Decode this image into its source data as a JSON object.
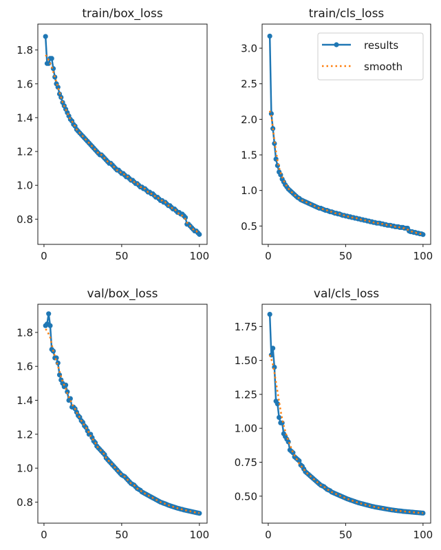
{
  "colors": {
    "results": "#1f77b4",
    "smooth": "#ff7f0e"
  },
  "legend": {
    "placement": "upper-right of train/cls_loss",
    "entries": [
      "results",
      "smooth"
    ]
  },
  "chart_data": [
    {
      "type": "line",
      "title": "train/box_loss",
      "xlim": [
        -3.95,
        104.95
      ],
      "ylim": [
        0.651,
        1.953
      ],
      "xticks": [
        0,
        50,
        100
      ],
      "xtick_labels": [
        "0",
        "50",
        "100"
      ],
      "yticks": [
        0.8,
        1.0,
        1.2,
        1.4,
        1.6,
        1.8
      ],
      "ytick_labels": [
        "0.8",
        "1.0",
        "1.2",
        "1.4",
        "1.6",
        "1.8"
      ],
      "x_start": 1,
      "series": [
        {
          "name": "results",
          "values": [
            1.88,
            1.72,
            1.72,
            1.75,
            1.75,
            1.69,
            1.64,
            1.6,
            1.58,
            1.54,
            1.52,
            1.49,
            1.47,
            1.45,
            1.43,
            1.41,
            1.39,
            1.38,
            1.36,
            1.35,
            1.33,
            1.32,
            1.31,
            1.3,
            1.29,
            1.28,
            1.27,
            1.26,
            1.25,
            1.24,
            1.23,
            1.22,
            1.21,
            1.2,
            1.19,
            1.18,
            1.18,
            1.17,
            1.16,
            1.15,
            1.14,
            1.13,
            1.13,
            1.12,
            1.11,
            1.1,
            1.09,
            1.09,
            1.08,
            1.07,
            1.07,
            1.06,
            1.05,
            1.05,
            1.04,
            1.03,
            1.03,
            1.02,
            1.01,
            1.01,
            1.0,
            0.99,
            0.99,
            0.98,
            0.98,
            0.97,
            0.96,
            0.96,
            0.95,
            0.95,
            0.94,
            0.93,
            0.93,
            0.92,
            0.91,
            0.91,
            0.9,
            0.9,
            0.89,
            0.88,
            0.88,
            0.87,
            0.86,
            0.86,
            0.85,
            0.84,
            0.84,
            0.83,
            0.83,
            0.82,
            0.81,
            0.77,
            0.77,
            0.76,
            0.75,
            0.74,
            0.73,
            0.73,
            0.72,
            0.71
          ]
        },
        {
          "name": "smooth",
          "values": [
            1.77,
            1.76,
            1.74,
            1.72,
            1.7,
            1.67,
            1.64,
            1.61,
            1.58,
            1.55,
            1.52,
            1.49,
            1.47,
            1.45,
            1.43,
            1.41,
            1.39,
            1.38,
            1.36,
            1.35,
            1.33,
            1.32,
            1.31,
            1.3,
            1.29,
            1.28,
            1.27,
            1.26,
            1.25,
            1.24,
            1.23,
            1.22,
            1.21,
            1.2,
            1.19,
            1.18,
            1.18,
            1.17,
            1.16,
            1.15,
            1.14,
            1.13,
            1.13,
            1.12,
            1.11,
            1.1,
            1.09,
            1.09,
            1.08,
            1.07,
            1.07,
            1.06,
            1.05,
            1.05,
            1.04,
            1.03,
            1.03,
            1.02,
            1.01,
            1.01,
            1.0,
            0.99,
            0.99,
            0.98,
            0.98,
            0.97,
            0.96,
            0.96,
            0.95,
            0.95,
            0.94,
            0.93,
            0.93,
            0.92,
            0.91,
            0.91,
            0.9,
            0.9,
            0.89,
            0.88,
            0.88,
            0.87,
            0.86,
            0.86,
            0.85,
            0.84,
            0.83,
            0.83,
            0.82,
            0.81,
            0.8,
            0.78,
            0.77,
            0.76,
            0.75,
            0.74,
            0.73,
            0.73,
            0.72,
            0.72
          ]
        }
      ]
    },
    {
      "type": "line",
      "title": "train/cls_loss",
      "xlim": [
        -3.95,
        104.95
      ],
      "ylim": [
        0.242,
        3.339
      ],
      "xticks": [
        0,
        50,
        100
      ],
      "xtick_labels": [
        "0",
        "50",
        "100"
      ],
      "yticks": [
        0.5,
        1.0,
        1.5,
        2.0,
        2.5,
        3.0
      ],
      "ytick_labels": [
        "0.5",
        "1.0",
        "1.5",
        "2.0",
        "2.5",
        "3.0"
      ],
      "x_start": 1,
      "series": [
        {
          "name": "results",
          "values": [
            3.17,
            2.08,
            1.87,
            1.66,
            1.44,
            1.35,
            1.26,
            1.22,
            1.16,
            1.12,
            1.08,
            1.05,
            1.02,
            1.0,
            0.98,
            0.96,
            0.94,
            0.92,
            0.9,
            0.89,
            0.87,
            0.86,
            0.85,
            0.84,
            0.83,
            0.82,
            0.81,
            0.8,
            0.79,
            0.78,
            0.77,
            0.76,
            0.75,
            0.75,
            0.74,
            0.73,
            0.72,
            0.72,
            0.71,
            0.7,
            0.7,
            0.69,
            0.68,
            0.68,
            0.67,
            0.67,
            0.66,
            0.65,
            0.65,
            0.64,
            0.64,
            0.63,
            0.63,
            0.62,
            0.62,
            0.61,
            0.61,
            0.6,
            0.6,
            0.59,
            0.59,
            0.58,
            0.58,
            0.57,
            0.57,
            0.56,
            0.56,
            0.55,
            0.55,
            0.54,
            0.54,
            0.54,
            0.53,
            0.53,
            0.52,
            0.52,
            0.51,
            0.51,
            0.51,
            0.5,
            0.5,
            0.49,
            0.49,
            0.49,
            0.48,
            0.48,
            0.48,
            0.47,
            0.47,
            0.47,
            0.43,
            0.42,
            0.42,
            0.41,
            0.41,
            0.4,
            0.4,
            0.39,
            0.39,
            0.38
          ]
        },
        {
          "name": "smooth",
          "values": [
            2.12,
            2.05,
            1.88,
            1.7,
            1.55,
            1.42,
            1.32,
            1.25,
            1.19,
            1.14,
            1.09,
            1.06,
            1.03,
            1.0,
            0.98,
            0.96,
            0.94,
            0.92,
            0.9,
            0.89,
            0.87,
            0.86,
            0.85,
            0.84,
            0.83,
            0.82,
            0.81,
            0.8,
            0.79,
            0.78,
            0.77,
            0.76,
            0.75,
            0.75,
            0.74,
            0.73,
            0.72,
            0.72,
            0.71,
            0.7,
            0.7,
            0.69,
            0.68,
            0.68,
            0.67,
            0.67,
            0.66,
            0.65,
            0.65,
            0.64,
            0.64,
            0.63,
            0.63,
            0.62,
            0.62,
            0.61,
            0.61,
            0.6,
            0.6,
            0.59,
            0.59,
            0.58,
            0.58,
            0.57,
            0.57,
            0.56,
            0.56,
            0.55,
            0.55,
            0.54,
            0.54,
            0.54,
            0.53,
            0.53,
            0.52,
            0.52,
            0.51,
            0.51,
            0.51,
            0.5,
            0.5,
            0.49,
            0.49,
            0.49,
            0.48,
            0.48,
            0.47,
            0.47,
            0.46,
            0.45,
            0.44,
            0.43,
            0.42,
            0.41,
            0.41,
            0.4,
            0.4,
            0.39,
            0.39,
            0.39
          ]
        }
      ]
    },
    {
      "type": "line",
      "title": "val/box_loss",
      "xlim": [
        -3.95,
        104.95
      ],
      "ylim": [
        0.676,
        1.966
      ],
      "xticks": [
        0,
        50,
        100
      ],
      "xtick_labels": [
        "0",
        "50",
        "100"
      ],
      "yticks": [
        0.8,
        1.0,
        1.2,
        1.4,
        1.6,
        1.8
      ],
      "ytick_labels": [
        "0.8",
        "1.0",
        "1.2",
        "1.4",
        "1.6",
        "1.8"
      ],
      "x_start": 1,
      "series": [
        {
          "name": "results",
          "values": [
            1.84,
            1.85,
            1.91,
            1.84,
            1.7,
            1.69,
            1.65,
            1.65,
            1.62,
            1.55,
            1.52,
            1.5,
            1.48,
            1.49,
            1.45,
            1.4,
            1.41,
            1.36,
            1.36,
            1.35,
            1.33,
            1.31,
            1.3,
            1.28,
            1.27,
            1.25,
            1.24,
            1.22,
            1.2,
            1.2,
            1.18,
            1.16,
            1.15,
            1.13,
            1.12,
            1.11,
            1.1,
            1.09,
            1.08,
            1.06,
            1.05,
            1.04,
            1.03,
            1.02,
            1.01,
            1.0,
            0.99,
            0.98,
            0.97,
            0.96,
            0.955,
            0.95,
            0.94,
            0.93,
            0.92,
            0.91,
            0.905,
            0.9,
            0.89,
            0.88,
            0.875,
            0.87,
            0.86,
            0.855,
            0.85,
            0.845,
            0.84,
            0.835,
            0.83,
            0.825,
            0.82,
            0.815,
            0.81,
            0.805,
            0.8,
            0.797,
            0.793,
            0.79,
            0.786,
            0.782,
            0.779,
            0.776,
            0.773,
            0.77,
            0.767,
            0.764,
            0.762,
            0.759,
            0.757,
            0.754,
            0.752,
            0.75,
            0.748,
            0.746,
            0.744,
            0.742,
            0.74,
            0.738,
            0.736,
            0.734
          ]
        },
        {
          "name": "smooth",
          "values": [
            1.82,
            1.81,
            1.79,
            1.77,
            1.73,
            1.69,
            1.66,
            1.63,
            1.6,
            1.57,
            1.54,
            1.51,
            1.49,
            1.47,
            1.44,
            1.42,
            1.4,
            1.38,
            1.36,
            1.35,
            1.33,
            1.31,
            1.3,
            1.28,
            1.27,
            1.25,
            1.24,
            1.22,
            1.21,
            1.19,
            1.18,
            1.16,
            1.15,
            1.13,
            1.12,
            1.11,
            1.1,
            1.09,
            1.08,
            1.06,
            1.05,
            1.04,
            1.03,
            1.02,
            1.01,
            1.0,
            0.99,
            0.98,
            0.97,
            0.96,
            0.955,
            0.95,
            0.94,
            0.93,
            0.92,
            0.91,
            0.905,
            0.9,
            0.89,
            0.88,
            0.875,
            0.87,
            0.86,
            0.855,
            0.85,
            0.845,
            0.84,
            0.835,
            0.83,
            0.825,
            0.82,
            0.815,
            0.81,
            0.805,
            0.8,
            0.797,
            0.793,
            0.79,
            0.786,
            0.782,
            0.779,
            0.776,
            0.773,
            0.77,
            0.767,
            0.764,
            0.762,
            0.759,
            0.757,
            0.754,
            0.752,
            0.75,
            0.748,
            0.746,
            0.744,
            0.742,
            0.74,
            0.738,
            0.737,
            0.736
          ]
        }
      ]
    },
    {
      "type": "line",
      "title": "val/cls_loss",
      "xlim": [
        -3.95,
        104.95
      ],
      "ylim": [
        0.301,
        1.914
      ],
      "xticks": [
        0,
        50,
        100
      ],
      "xtick_labels": [
        "0",
        "50",
        "100"
      ],
      "yticks": [
        0.5,
        0.75,
        1.0,
        1.25,
        1.5,
        1.75
      ],
      "ytick_labels": [
        "0.50",
        "0.75",
        "1.00",
        "1.25",
        "1.50",
        "1.75"
      ],
      "x_start": 1,
      "series": [
        {
          "name": "results",
          "values": [
            1.84,
            1.54,
            1.59,
            1.45,
            1.2,
            1.18,
            1.08,
            1.04,
            1.04,
            0.96,
            0.94,
            0.92,
            0.9,
            0.84,
            0.83,
            0.82,
            0.79,
            0.78,
            0.77,
            0.76,
            0.73,
            0.72,
            0.7,
            0.68,
            0.67,
            0.66,
            0.65,
            0.64,
            0.63,
            0.62,
            0.61,
            0.6,
            0.59,
            0.58,
            0.575,
            0.57,
            0.56,
            0.55,
            0.545,
            0.54,
            0.53,
            0.525,
            0.52,
            0.515,
            0.51,
            0.505,
            0.5,
            0.495,
            0.49,
            0.485,
            0.48,
            0.476,
            0.472,
            0.468,
            0.464,
            0.46,
            0.456,
            0.452,
            0.449,
            0.446,
            0.443,
            0.44,
            0.437,
            0.434,
            0.431,
            0.428,
            0.425,
            0.423,
            0.42,
            0.418,
            0.416,
            0.414,
            0.412,
            0.41,
            0.408,
            0.406,
            0.404,
            0.402,
            0.4,
            0.398,
            0.397,
            0.395,
            0.394,
            0.392,
            0.391,
            0.39,
            0.388,
            0.387,
            0.386,
            0.385,
            0.384,
            0.383,
            0.382,
            0.381,
            0.38,
            0.379,
            0.378,
            0.377,
            0.376,
            0.375
          ]
        },
        {
          "name": "smooth",
          "values": [
            1.54,
            1.51,
            1.47,
            1.41,
            1.34,
            1.27,
            1.2,
            1.13,
            1.07,
            1.02,
            0.98,
            0.94,
            0.91,
            0.88,
            0.85,
            0.82,
            0.8,
            0.78,
            0.76,
            0.74,
            0.73,
            0.71,
            0.7,
            0.68,
            0.67,
            0.66,
            0.65,
            0.64,
            0.63,
            0.62,
            0.61,
            0.6,
            0.59,
            0.58,
            0.575,
            0.57,
            0.56,
            0.55,
            0.545,
            0.54,
            0.53,
            0.525,
            0.52,
            0.515,
            0.51,
            0.505,
            0.5,
            0.495,
            0.49,
            0.485,
            0.48,
            0.476,
            0.472,
            0.468,
            0.464,
            0.46,
            0.456,
            0.452,
            0.449,
            0.446,
            0.443,
            0.44,
            0.437,
            0.434,
            0.431,
            0.428,
            0.425,
            0.423,
            0.42,
            0.418,
            0.416,
            0.414,
            0.412,
            0.41,
            0.408,
            0.406,
            0.404,
            0.402,
            0.4,
            0.398,
            0.397,
            0.395,
            0.394,
            0.392,
            0.391,
            0.39,
            0.388,
            0.387,
            0.386,
            0.385,
            0.384,
            0.383,
            0.382,
            0.381,
            0.38,
            0.379,
            0.378,
            0.377,
            0.376,
            0.376
          ]
        }
      ]
    }
  ]
}
